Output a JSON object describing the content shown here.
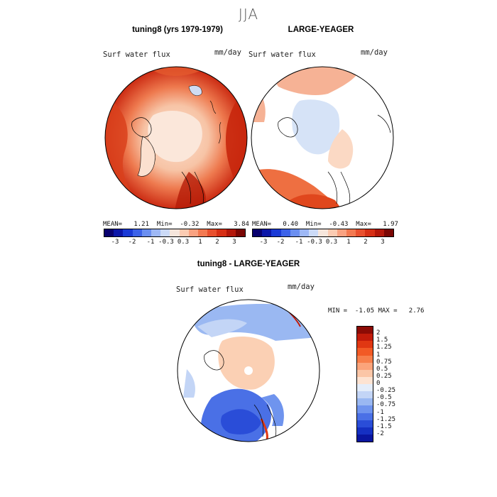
{
  "figure": {
    "title": "JJA"
  },
  "panels": {
    "left": {
      "title": "tuning8 (yrs 1979-1979)",
      "variable": "Surf water flux",
      "units": "mm/day",
      "stats": "MEAN=   1.21  Min=  -0.32  Max=   3.84"
    },
    "right": {
      "title": "LARGE-YEAGER",
      "variable": "Surf water flux",
      "units": "mm/day",
      "stats": "MEAN=   0.40  Min=  -0.43  Max=   1.97"
    },
    "diff": {
      "title": "tuning8 - LARGE-YEAGER",
      "variable": "Surf water flux",
      "units": "mm/day",
      "stats": "MIN =  -1.05 MAX =   2.76"
    }
  },
  "colorbar_top": {
    "tick_labels": [
      "-3",
      "-2",
      "-1",
      "-0.3",
      "0.3",
      "1",
      "2",
      "3"
    ],
    "colors": [
      "#08006e",
      "#0b16a8",
      "#1a3ad6",
      "#3c62e8",
      "#6b8ff0",
      "#9eb8f5",
      "#cbdaf7",
      "#f6e6dc",
      "#fbcbb2",
      "#f9a281",
      "#f27951",
      "#e8502e",
      "#d62f15",
      "#b3170a",
      "#7a0603"
    ]
  },
  "colorbar_diff": {
    "tick_labels": [
      "2",
      "1.5",
      "1.25",
      "1",
      "0.75",
      "0.5",
      "0.25",
      "0",
      "-0.25",
      "-0.5",
      "-0.75",
      "-1",
      "-1.25",
      "-1.5",
      "-2"
    ],
    "colors": [
      "#8c0b05",
      "#c21b0a",
      "#e03712",
      "#f25a25",
      "#f77f4b",
      "#fba47b",
      "#fbc6a7",
      "#fde3d2",
      "#e4edfa",
      "#c3d5f6",
      "#9ab8f2",
      "#6f94ee",
      "#4a70e6",
      "#2a4dd8",
      "#1530c2",
      "#0a16a0"
    ]
  },
  "maps": {
    "left_fill": "#f3c3a6",
    "right_fill": "#ffffff",
    "diff_fill": "#ffffff"
  }
}
